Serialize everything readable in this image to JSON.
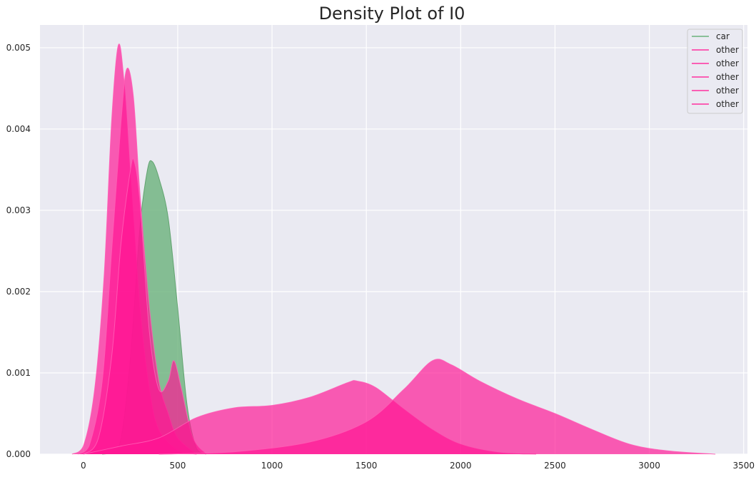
{
  "chart_data": {
    "type": "area",
    "title": "Density Plot of I0",
    "xlabel": "",
    "ylabel": "",
    "xlim": [
      -230,
      3520
    ],
    "ylim": [
      0,
      0.00528
    ],
    "x_ticks": [
      0,
      500,
      1000,
      1500,
      2000,
      2500,
      3000,
      3500
    ],
    "x_tick_labels": [
      "0",
      "500",
      "1000",
      "1500",
      "2000",
      "2500",
      "3000",
      "3500"
    ],
    "y_ticks": [
      0,
      0.001,
      0.002,
      0.003,
      0.004,
      0.005
    ],
    "y_tick_labels": [
      "0.000",
      "0.001",
      "0.002",
      "0.003",
      "0.004",
      "0.005"
    ],
    "grid": true,
    "legend_position": "top-right",
    "series": [
      {
        "name": "car",
        "color": "#6ab27b",
        "points": [
          [
            100,
            0
          ],
          [
            150,
            2e-05
          ],
          [
            200,
            0.0002
          ],
          [
            250,
            0.0012
          ],
          [
            300,
            0.0028
          ],
          [
            340,
            0.0035
          ],
          [
            365,
            0.0036
          ],
          [
            400,
            0.0034
          ],
          [
            450,
            0.0029
          ],
          [
            500,
            0.0018
          ],
          [
            550,
            0.0006
          ],
          [
            600,
            7e-05
          ],
          [
            650,
            0
          ]
        ]
      },
      {
        "name": "other",
        "color": "#ff1493",
        "points": [
          [
            -60,
            0
          ],
          [
            0,
            0.0001
          ],
          [
            60,
            0.0008
          ],
          [
            110,
            0.0022
          ],
          [
            150,
            0.0041
          ],
          [
            185,
            0.00503
          ],
          [
            215,
            0.0046
          ],
          [
            250,
            0.0034
          ],
          [
            300,
            0.0018
          ],
          [
            350,
            0.0008
          ],
          [
            400,
            0.0003
          ],
          [
            500,
            5e-05
          ],
          [
            600,
            0
          ]
        ]
      },
      {
        "name": "other",
        "color": "#ff1493",
        "points": [
          [
            -30,
            0
          ],
          [
            30,
            0.0001
          ],
          [
            100,
            0.0009
          ],
          [
            150,
            0.0025
          ],
          [
            200,
            0.0041
          ],
          [
            230,
            0.00474
          ],
          [
            265,
            0.0044
          ],
          [
            300,
            0.0032
          ],
          [
            350,
            0.0018
          ],
          [
            400,
            0.0009
          ],
          [
            450,
            0.0005
          ],
          [
            500,
            0.0002
          ],
          [
            600,
            0
          ]
        ]
      },
      {
        "name": "other",
        "color": "#ff1493",
        "points": [
          [
            0,
            0
          ],
          [
            80,
            0.0002
          ],
          [
            150,
            0.0012
          ],
          [
            200,
            0.0026
          ],
          [
            250,
            0.0035
          ],
          [
            270,
            0.0036
          ],
          [
            300,
            0.0031
          ],
          [
            350,
            0.0015
          ],
          [
            400,
            0.0008
          ],
          [
            450,
            0.0009
          ],
          [
            480,
            0.00115
          ],
          [
            520,
            0.0008
          ],
          [
            580,
            0.0002
          ],
          [
            650,
            0
          ]
        ]
      },
      {
        "name": "other",
        "color": "#ff1493",
        "points": [
          [
            0,
            0
          ],
          [
            200,
            0.0001
          ],
          [
            400,
            0.0002
          ],
          [
            600,
            0.00045
          ],
          [
            800,
            0.00057
          ],
          [
            1000,
            0.0006
          ],
          [
            1200,
            0.0007
          ],
          [
            1400,
            0.00088
          ],
          [
            1450,
            0.0009
          ],
          [
            1550,
            0.00082
          ],
          [
            1700,
            0.00055
          ],
          [
            1850,
            0.0003
          ],
          [
            2000,
            0.00012
          ],
          [
            2200,
            2e-05
          ],
          [
            2400,
            0
          ]
        ]
      },
      {
        "name": "other",
        "color": "#ff1493",
        "points": [
          [
            400,
            0
          ],
          [
            800,
            3e-05
          ],
          [
            1200,
            0.00015
          ],
          [
            1500,
            0.0004
          ],
          [
            1700,
            0.0008
          ],
          [
            1850,
            0.00115
          ],
          [
            1950,
            0.0011
          ],
          [
            2100,
            0.0009
          ],
          [
            2300,
            0.00068
          ],
          [
            2500,
            0.0005
          ],
          [
            2700,
            0.0003
          ],
          [
            2900,
            0.00012
          ],
          [
            3100,
            4e-05
          ],
          [
            3350,
            0
          ]
        ]
      }
    ]
  }
}
